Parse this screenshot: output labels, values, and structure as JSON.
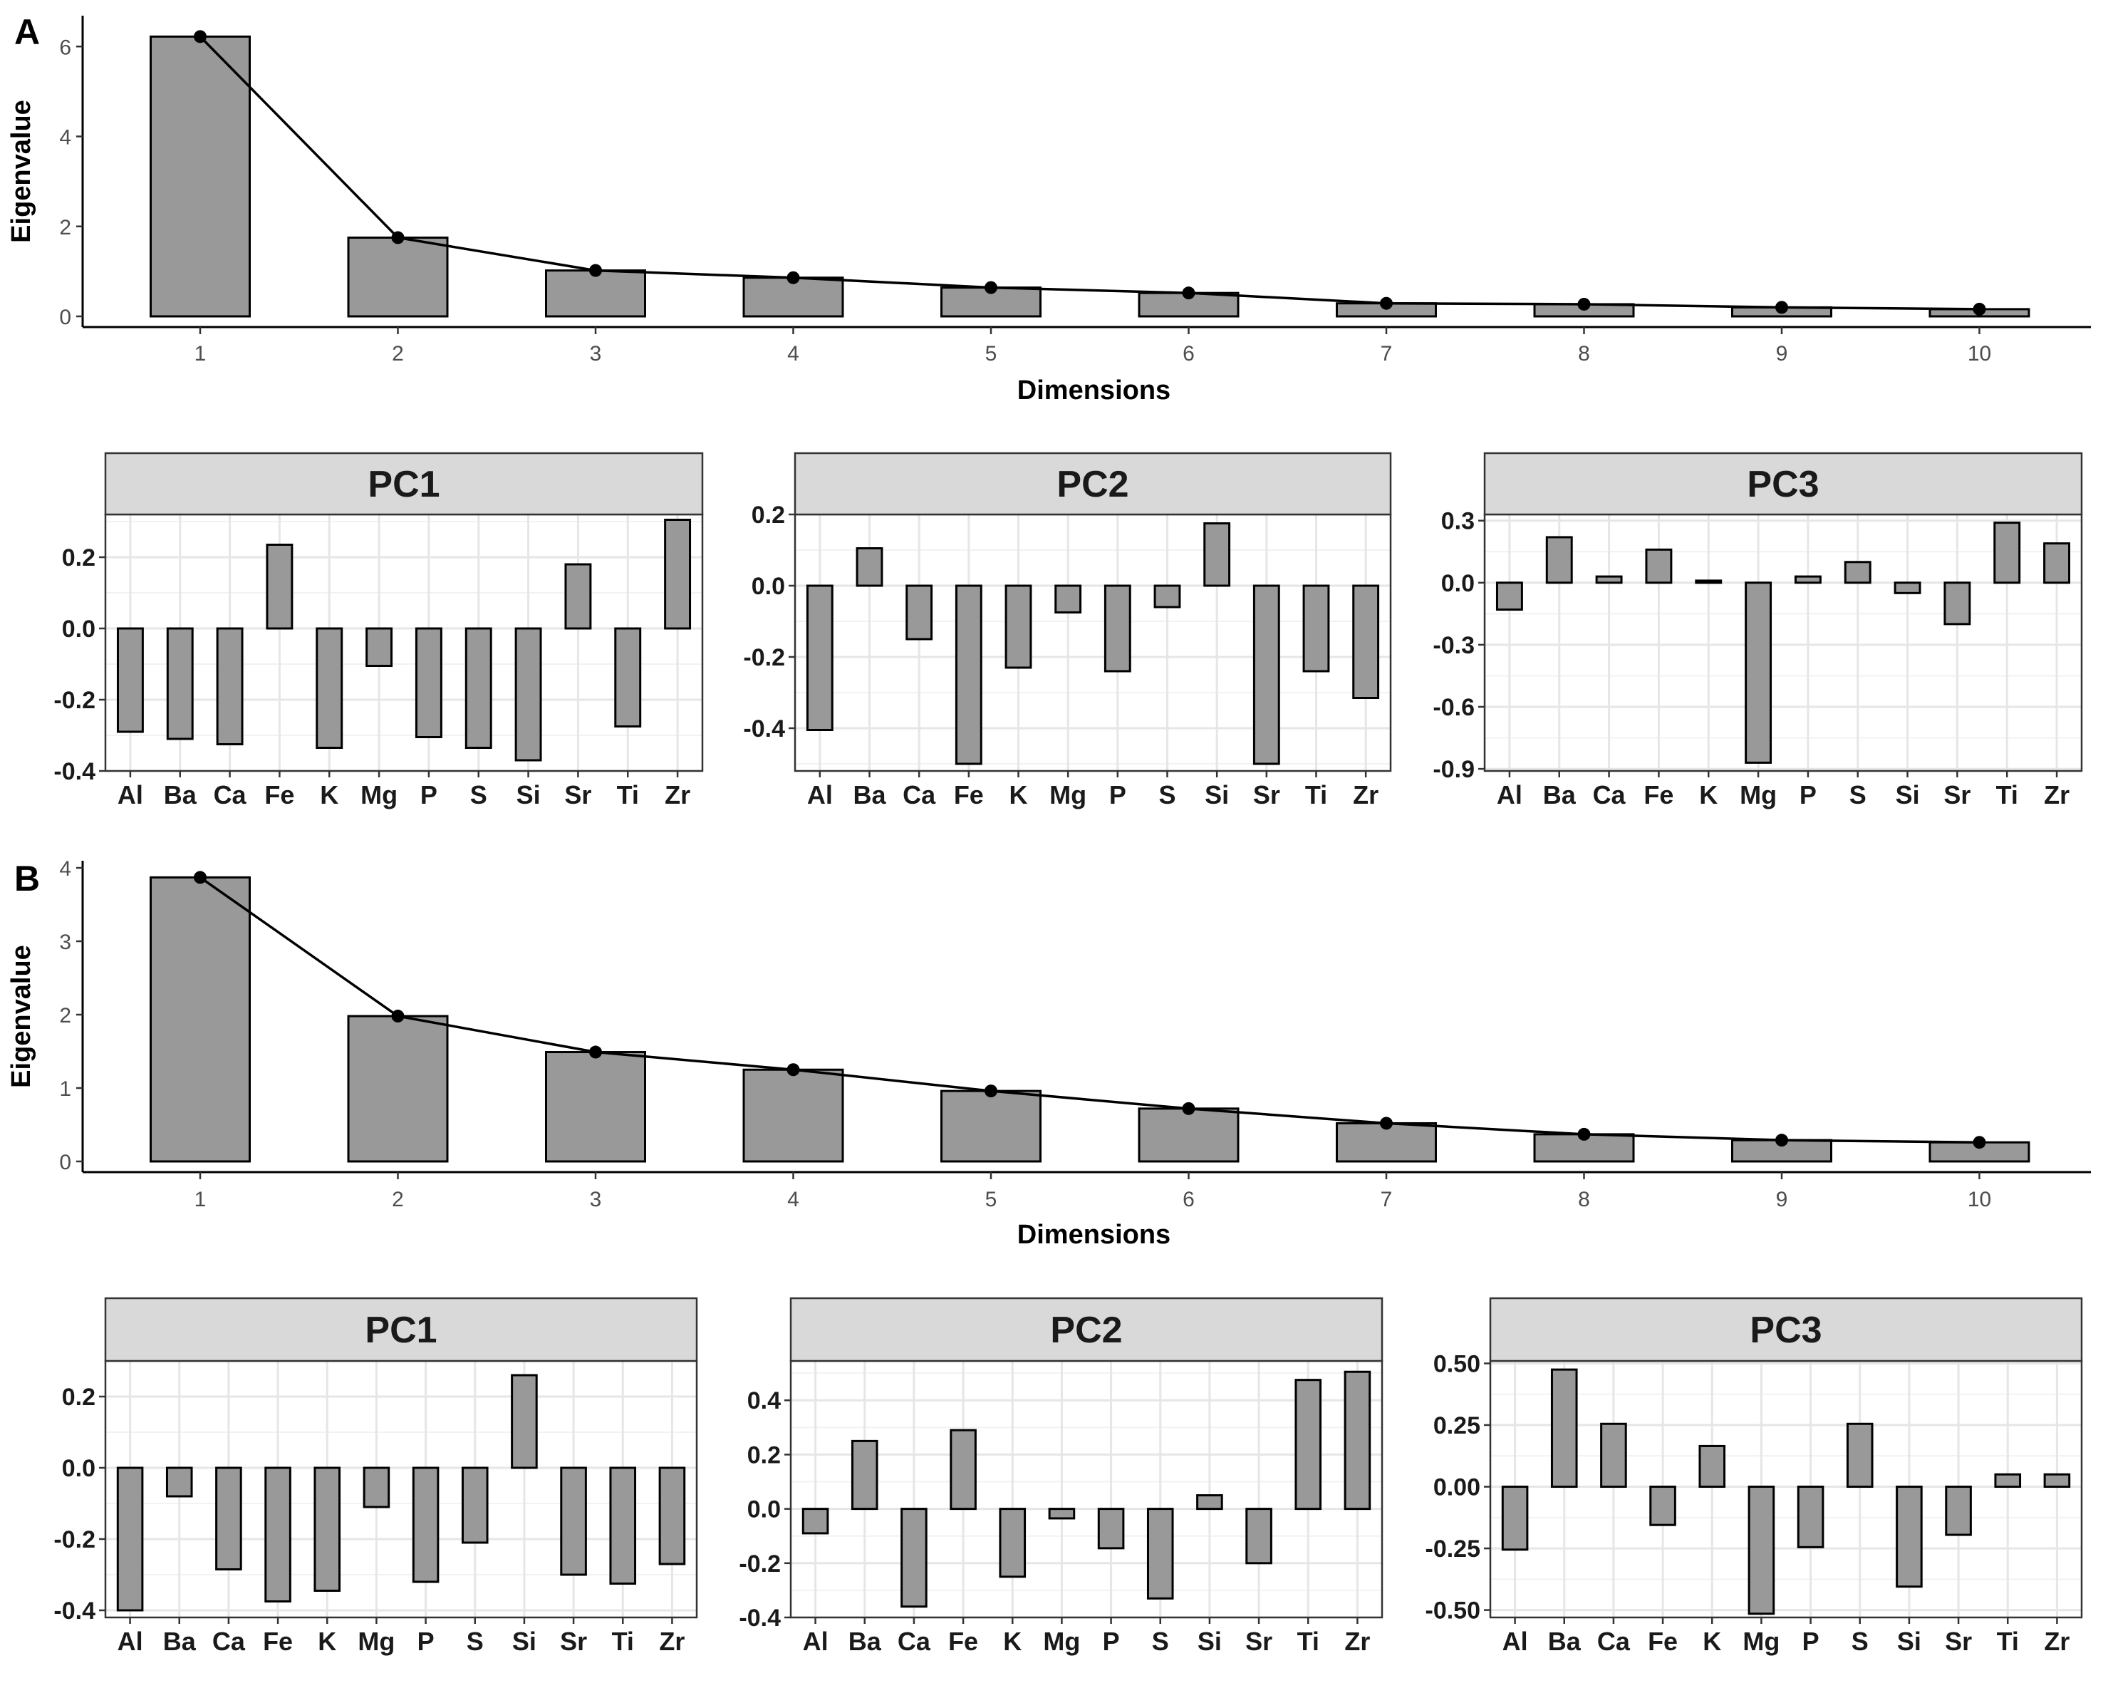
{
  "panels": [
    {
      "label": "A",
      "scree": {
        "type": "bar",
        "xlabel": "Dimensions",
        "ylabel": "Eigenvalue",
        "categories": [
          "1",
          "2",
          "3",
          "4",
          "5",
          "6",
          "7",
          "8",
          "9",
          "10"
        ],
        "values": [
          6.22,
          1.75,
          1.02,
          0.86,
          0.64,
          0.52,
          0.29,
          0.27,
          0.2,
          0.16
        ],
        "ylim": [
          0,
          6.4
        ],
        "yticks": [
          0,
          2,
          4,
          6
        ],
        "line": true,
        "bar_color": "#999999"
      },
      "loadings": [
        {
          "type": "bar",
          "title": "PC1",
          "categories": [
            "Al",
            "Ba",
            "Ca",
            "Fe",
            "K",
            "Mg",
            "P",
            "S",
            "Si",
            "Sr",
            "Ti",
            "Zr"
          ],
          "values": [
            -0.29,
            -0.31,
            -0.325,
            0.235,
            -0.335,
            -0.105,
            -0.305,
            -0.335,
            -0.37,
            0.18,
            -0.275,
            0.305
          ],
          "ylim": [
            -0.4,
            0.32
          ],
          "yticks": [
            -0.4,
            -0.2,
            0.0,
            0.2
          ],
          "ytick_labels": [
            "-0.4",
            "-0.2",
            "0.0",
            "0.2"
          ]
        },
        {
          "type": "bar",
          "title": "PC2",
          "categories": [
            "Al",
            "Ba",
            "Ca",
            "Fe",
            "K",
            "Mg",
            "P",
            "S",
            "Si",
            "Sr",
            "Ti",
            "Zr"
          ],
          "values": [
            -0.405,
            0.105,
            -0.15,
            -0.5,
            -0.23,
            -0.075,
            -0.24,
            -0.06,
            0.175,
            -0.5,
            -0.24,
            -0.315
          ],
          "ylim": [
            -0.52,
            0.2
          ],
          "yticks": [
            -0.4,
            -0.2,
            0.0,
            0.2
          ],
          "ytick_labels": [
            "-0.4",
            "-0.2",
            "0.0",
            "0.2"
          ]
        },
        {
          "type": "bar",
          "title": "PC3",
          "categories": [
            "Al",
            "Ba",
            "Ca",
            "Fe",
            "K",
            "Mg",
            "P",
            "S",
            "Si",
            "Sr",
            "Ti",
            "Zr"
          ],
          "values": [
            -0.13,
            0.22,
            0.03,
            0.16,
            0.01,
            -0.87,
            0.03,
            0.1,
            -0.05,
            -0.2,
            0.29,
            0.19
          ],
          "ylim": [
            -0.91,
            0.33
          ],
          "yticks": [
            -0.9,
            -0.6,
            -0.3,
            0.0,
            0.3
          ],
          "ytick_labels": [
            "-0.9",
            "-0.6",
            "-0.3",
            "0.0",
            "0.3"
          ]
        }
      ]
    },
    {
      "label": "B",
      "scree": {
        "type": "bar",
        "xlabel": "Dimensions",
        "ylabel": "Eigenvalue",
        "categories": [
          "1",
          "2",
          "3",
          "4",
          "5",
          "6",
          "7",
          "8",
          "9",
          "10"
        ],
        "values": [
          3.87,
          1.98,
          1.49,
          1.25,
          0.96,
          0.72,
          0.52,
          0.37,
          0.29,
          0.26
        ],
        "ylim": [
          0,
          4.0
        ],
        "yticks": [
          0,
          1,
          2,
          3,
          4
        ],
        "line": true,
        "bar_color": "#999999"
      },
      "loadings": [
        {
          "type": "bar",
          "title": "PC1",
          "categories": [
            "Al",
            "Ba",
            "Ca",
            "Fe",
            "K",
            "Mg",
            "P",
            "S",
            "Si",
            "Sr",
            "Ti",
            "Zr"
          ],
          "values": [
            -0.4,
            -0.08,
            -0.285,
            -0.375,
            -0.345,
            -0.11,
            -0.32,
            -0.21,
            0.26,
            -0.3,
            -0.325,
            -0.27
          ],
          "ylim": [
            -0.42,
            0.3
          ],
          "yticks": [
            -0.4,
            -0.2,
            0.0,
            0.2
          ],
          "ytick_labels": [
            "-0.4",
            "-0.2",
            "0.0",
            "0.2"
          ]
        },
        {
          "type": "bar",
          "title": "PC2",
          "categories": [
            "Al",
            "Ba",
            "Ca",
            "Fe",
            "K",
            "Mg",
            "P",
            "S",
            "Si",
            "Sr",
            "Ti",
            "Zr"
          ],
          "values": [
            -0.09,
            0.25,
            -0.36,
            0.29,
            -0.25,
            -0.035,
            -0.145,
            -0.33,
            0.05,
            -0.2,
            0.475,
            0.505
          ],
          "ylim": [
            -0.4,
            0.545
          ],
          "yticks": [
            -0.4,
            -0.2,
            0.0,
            0.2,
            0.4
          ],
          "ytick_labels": [
            "-0.4",
            "-0.2",
            "0.0",
            "0.2",
            "0.4"
          ]
        },
        {
          "type": "bar",
          "title": "PC3",
          "categories": [
            "Al",
            "Ba",
            "Ca",
            "Fe",
            "K",
            "Mg",
            "P",
            "S",
            "Si",
            "Sr",
            "Ti",
            "Zr"
          ],
          "values": [
            -0.255,
            0.475,
            0.255,
            -0.155,
            0.165,
            -0.515,
            -0.245,
            0.255,
            -0.405,
            -0.195,
            0.05,
            0.05
          ],
          "ylim": [
            -0.53,
            0.51
          ],
          "yticks": [
            -0.5,
            -0.25,
            0.0,
            0.25,
            0.5
          ],
          "ytick_labels": [
            "-0.50",
            "-0.25",
            "0.00",
            "0.25",
            "0.50"
          ]
        }
      ]
    }
  ]
}
